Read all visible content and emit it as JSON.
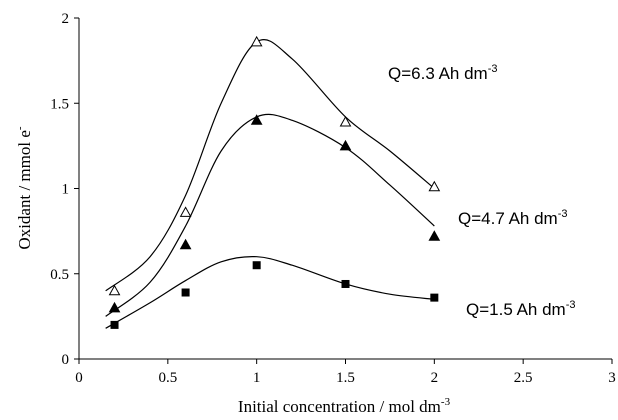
{
  "chart_data": {
    "type": "scatter",
    "xlabel": "Initial concentration / mol dm",
    "xlabel_sup": "-3",
    "ylabel": "Oxidant / mmol e",
    "ylabel_sup": "-",
    "xlim": [
      0,
      3
    ],
    "ylim": [
      0,
      2
    ],
    "x_ticks": [
      "0",
      "0.5",
      "1",
      "1.5",
      "2",
      "2.5",
      "3"
    ],
    "y_ticks": [
      "0",
      "0.5",
      "1",
      "1.5",
      "2"
    ],
    "grid": false,
    "series": [
      {
        "name": "Q=6.3 Ah dm",
        "name_sup": "-3",
        "marker": "open-triangle",
        "x": [
          0.2,
          0.6,
          1.0,
          1.5,
          2.0
        ],
        "y": [
          0.4,
          0.86,
          1.86,
          1.39,
          1.01
        ],
        "fit_curve": [
          [
            0.15,
            0.4
          ],
          [
            0.4,
            0.6
          ],
          [
            0.6,
            0.96
          ],
          [
            0.8,
            1.5
          ],
          [
            1.0,
            1.86
          ],
          [
            1.2,
            1.76
          ],
          [
            1.5,
            1.42
          ],
          [
            1.75,
            1.22
          ],
          [
            2.0,
            1.0
          ]
        ]
      },
      {
        "name": "Q=4.7 Ah dm",
        "name_sup": "-3",
        "marker": "filled-triangle",
        "x": [
          0.2,
          0.6,
          1.0,
          1.5,
          2.0
        ],
        "y": [
          0.3,
          0.67,
          1.4,
          1.25,
          0.72
        ],
        "fit_curve": [
          [
            0.15,
            0.25
          ],
          [
            0.4,
            0.45
          ],
          [
            0.6,
            0.78
          ],
          [
            0.8,
            1.22
          ],
          [
            1.0,
            1.42
          ],
          [
            1.2,
            1.4
          ],
          [
            1.5,
            1.24
          ],
          [
            1.75,
            1.02
          ],
          [
            2.0,
            0.78
          ]
        ]
      },
      {
        "name": "Q=1.5 Ah dm",
        "name_sup": "-3",
        "marker": "filled-square",
        "x": [
          0.2,
          0.6,
          1.0,
          1.5,
          2.0
        ],
        "y": [
          0.2,
          0.39,
          0.55,
          0.44,
          0.36
        ],
        "fit_curve": [
          [
            0.15,
            0.18
          ],
          [
            0.4,
            0.33
          ],
          [
            0.6,
            0.46
          ],
          [
            0.8,
            0.57
          ],
          [
            1.0,
            0.6
          ],
          [
            1.2,
            0.55
          ],
          [
            1.5,
            0.44
          ],
          [
            1.75,
            0.38
          ],
          [
            2.0,
            0.35
          ]
        ]
      }
    ]
  }
}
